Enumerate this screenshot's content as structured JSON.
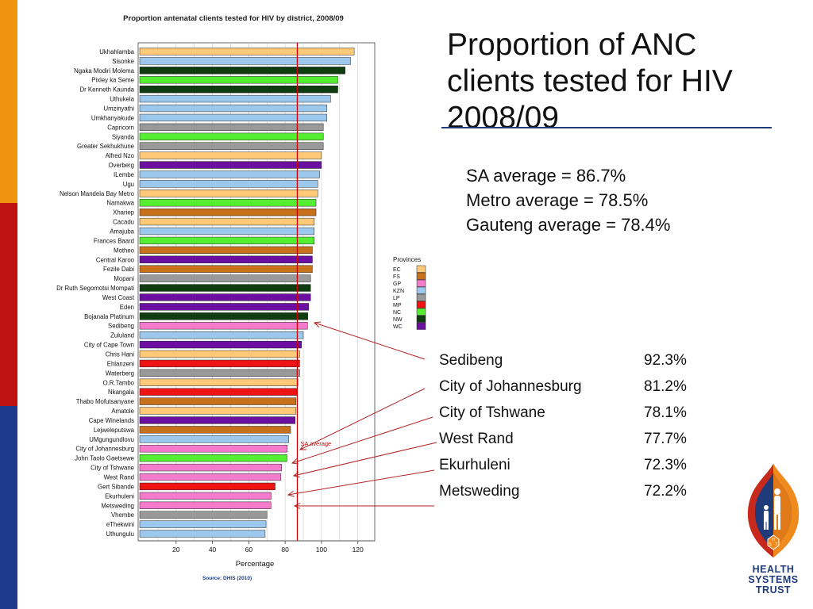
{
  "slide": {
    "title": "Proportion of ANC clients tested for HIV 2008/09",
    "stats": [
      "SA average = 86.7%",
      "Metro average = 78.5%",
      "Gauteng average = 78.4%"
    ],
    "callouts": [
      {
        "name": "Sedibeng",
        "value": "92.3%"
      },
      {
        "name": "City of Johannesburg",
        "value": "81.2%"
      },
      {
        "name": "City of Tshwane",
        "value": "78.1%"
      },
      {
        "name": "West Rand",
        "value": "77.7%"
      },
      {
        "name": "Ekurhuleni",
        "value": "72.3%"
      },
      {
        "name": "Metsweding",
        "value": "72.2%"
      }
    ],
    "logo": {
      "icon": "health-systems-trust-shield",
      "lines": [
        "HEALTH",
        "SYSTEMS",
        "TRUST"
      ],
      "letters": [
        "H",
        "S",
        "T"
      ]
    }
  },
  "chart_data": {
    "type": "bar",
    "orientation": "horizontal",
    "title": "Proportion antenatal clients tested for HIV by district, 2008/09",
    "xlabel": "Percentage",
    "source": "Source: DHIS (2010)",
    "xlim": [
      0,
      130
    ],
    "xticks": [
      20,
      40,
      60,
      80,
      100,
      120
    ],
    "grid": true,
    "reference_line": {
      "label": "SA average",
      "value": 86.7,
      "color": "#cc0000"
    },
    "legend": {
      "title": "Provinces",
      "placement": "right",
      "items": [
        {
          "code": "EC",
          "color": "#ffc977"
        },
        {
          "code": "FS",
          "color": "#c8711c"
        },
        {
          "code": "GP",
          "color": "#f57ccc"
        },
        {
          "code": "KZN",
          "color": "#9cc8ee"
        },
        {
          "code": "LP",
          "color": "#999999"
        },
        {
          "code": "MP",
          "color": "#ee1414"
        },
        {
          "code": "NC",
          "color": "#55ee33"
        },
        {
          "code": "NW",
          "color": "#0f3d0f"
        },
        {
          "code": "WC",
          "color": "#6a0fa0"
        }
      ]
    },
    "bars": [
      {
        "district": "Ukhahlamba",
        "province": "EC",
        "value": 118
      },
      {
        "district": "Sisonke",
        "province": "KZN",
        "value": 116
      },
      {
        "district": "Ngaka Modiri Molema",
        "province": "NW",
        "value": 113
      },
      {
        "district": "Pixley ka Seme",
        "province": "NC",
        "value": 109
      },
      {
        "district": "Dr Kenneth Kaunda",
        "province": "NW",
        "value": 109
      },
      {
        "district": "Uthukela",
        "province": "KZN",
        "value": 105
      },
      {
        "district": "Umzinyathi",
        "province": "KZN",
        "value": 103
      },
      {
        "district": "Umkhanyakude",
        "province": "KZN",
        "value": 103
      },
      {
        "district": "Capricorn",
        "province": "LP",
        "value": 101
      },
      {
        "district": "Siyanda",
        "province": "NC",
        "value": 101
      },
      {
        "district": "Greater Sekhukhune",
        "province": "LP",
        "value": 101
      },
      {
        "district": "Alfred Nzo",
        "province": "EC",
        "value": 100
      },
      {
        "district": "Overberg",
        "province": "WC",
        "value": 100
      },
      {
        "district": "ILembe",
        "province": "KZN",
        "value": 99
      },
      {
        "district": "Ugu",
        "province": "KZN",
        "value": 98
      },
      {
        "district": "Nelson Mandela Bay Metro",
        "province": "EC",
        "value": 98
      },
      {
        "district": "Namakwa",
        "province": "NC",
        "value": 97
      },
      {
        "district": "Xhariep",
        "province": "FS",
        "value": 97
      },
      {
        "district": "Cacadu",
        "province": "EC",
        "value": 96
      },
      {
        "district": "Amajuba",
        "province": "KZN",
        "value": 96
      },
      {
        "district": "Frances Baard",
        "province": "NC",
        "value": 96
      },
      {
        "district": "Motheo",
        "province": "FS",
        "value": 95
      },
      {
        "district": "Central Karoo",
        "province": "WC",
        "value": 95
      },
      {
        "district": "Fezile Dabi",
        "province": "FS",
        "value": 95
      },
      {
        "district": "Mopani",
        "province": "LP",
        "value": 94
      },
      {
        "district": "Dr Ruth Segomotsi Mompati",
        "province": "NW",
        "value": 94
      },
      {
        "district": "West Coast",
        "province": "WC",
        "value": 94
      },
      {
        "district": "Eden",
        "province": "WC",
        "value": 93
      },
      {
        "district": "Bojanala Platinum",
        "province": "NW",
        "value": 92.5
      },
      {
        "district": "Sedibeng",
        "province": "GP",
        "value": 92.3
      },
      {
        "district": "Zululand",
        "province": "KZN",
        "value": 90
      },
      {
        "district": "City of Cape Town",
        "province": "WC",
        "value": 89
      },
      {
        "district": "Chris Hani",
        "province": "EC",
        "value": 88
      },
      {
        "district": "Ehlanzeni",
        "province": "MP",
        "value": 88
      },
      {
        "district": "Waterberg",
        "province": "LP",
        "value": 88
      },
      {
        "district": "O.R.Tambo",
        "province": "EC",
        "value": 87
      },
      {
        "district": "Nkangala",
        "province": "MP",
        "value": 86.5
      },
      {
        "district": "Thabo Mofutsanyane",
        "province": "FS",
        "value": 86
      },
      {
        "district": "Amatole",
        "province": "EC",
        "value": 86
      },
      {
        "district": "Cape Winelands",
        "province": "WC",
        "value": 85.5
      },
      {
        "district": "Lejweleputswa",
        "province": "FS",
        "value": 83
      },
      {
        "district": "UMgungundlovu",
        "province": "KZN",
        "value": 82
      },
      {
        "district": "City of Johannesburg",
        "province": "GP",
        "value": 81.2
      },
      {
        "district": "John Taolo Gaetsewe",
        "province": "NC",
        "value": 81
      },
      {
        "district": "City of Tshwane",
        "province": "GP",
        "value": 78.1
      },
      {
        "district": "West Rand",
        "province": "GP",
        "value": 77.7
      },
      {
        "district": "Gert Sibande",
        "province": "MP",
        "value": 74.5
      },
      {
        "district": "Ekurhuleni",
        "province": "GP",
        "value": 72.3
      },
      {
        "district": "Metsweding",
        "province": "GP",
        "value": 72.2
      },
      {
        "district": "Vhembe",
        "province": "LP",
        "value": 70
      },
      {
        "district": "eThekwini",
        "province": "KZN",
        "value": 69.5
      },
      {
        "district": "Uthungulu",
        "province": "KZN",
        "value": 69
      }
    ]
  }
}
